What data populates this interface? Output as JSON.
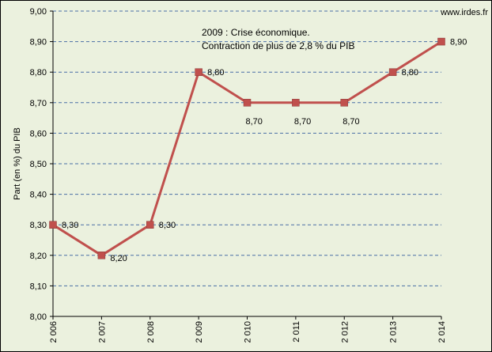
{
  "source_text": "www.irdes.fr",
  "annotation": {
    "line1": "2009  : Crise économique.",
    "line2": "Contraction de  plus de 2,8 % du PIB"
  },
  "colors": {
    "background": "#ebf1de",
    "series": "#c0504d",
    "grid": "#4a6fa5"
  },
  "chart_data": {
    "type": "line",
    "ylabel": "Part (en %) du PIB",
    "xlabel": "",
    "x": [
      "2 006",
      "2 007",
      "2 008",
      "2 009",
      "2 010",
      "2 011",
      "2 012",
      "2 013",
      "2 014"
    ],
    "values": [
      8.3,
      8.2,
      8.3,
      8.8,
      8.7,
      8.7,
      8.7,
      8.8,
      8.9
    ],
    "data_labels": [
      "8,30",
      "8,20",
      "8,30",
      "8,80",
      "8,70",
      "8,70",
      "8,70",
      "8,80",
      "8,90"
    ],
    "ylim": [
      8.0,
      9.0
    ],
    "yticks": [
      "8,00",
      "8,10",
      "8,20",
      "8,30",
      "8,40",
      "8,50",
      "8,60",
      "8,70",
      "8,80",
      "8,90",
      "9,00"
    ],
    "grid": true,
    "legend": "none"
  }
}
